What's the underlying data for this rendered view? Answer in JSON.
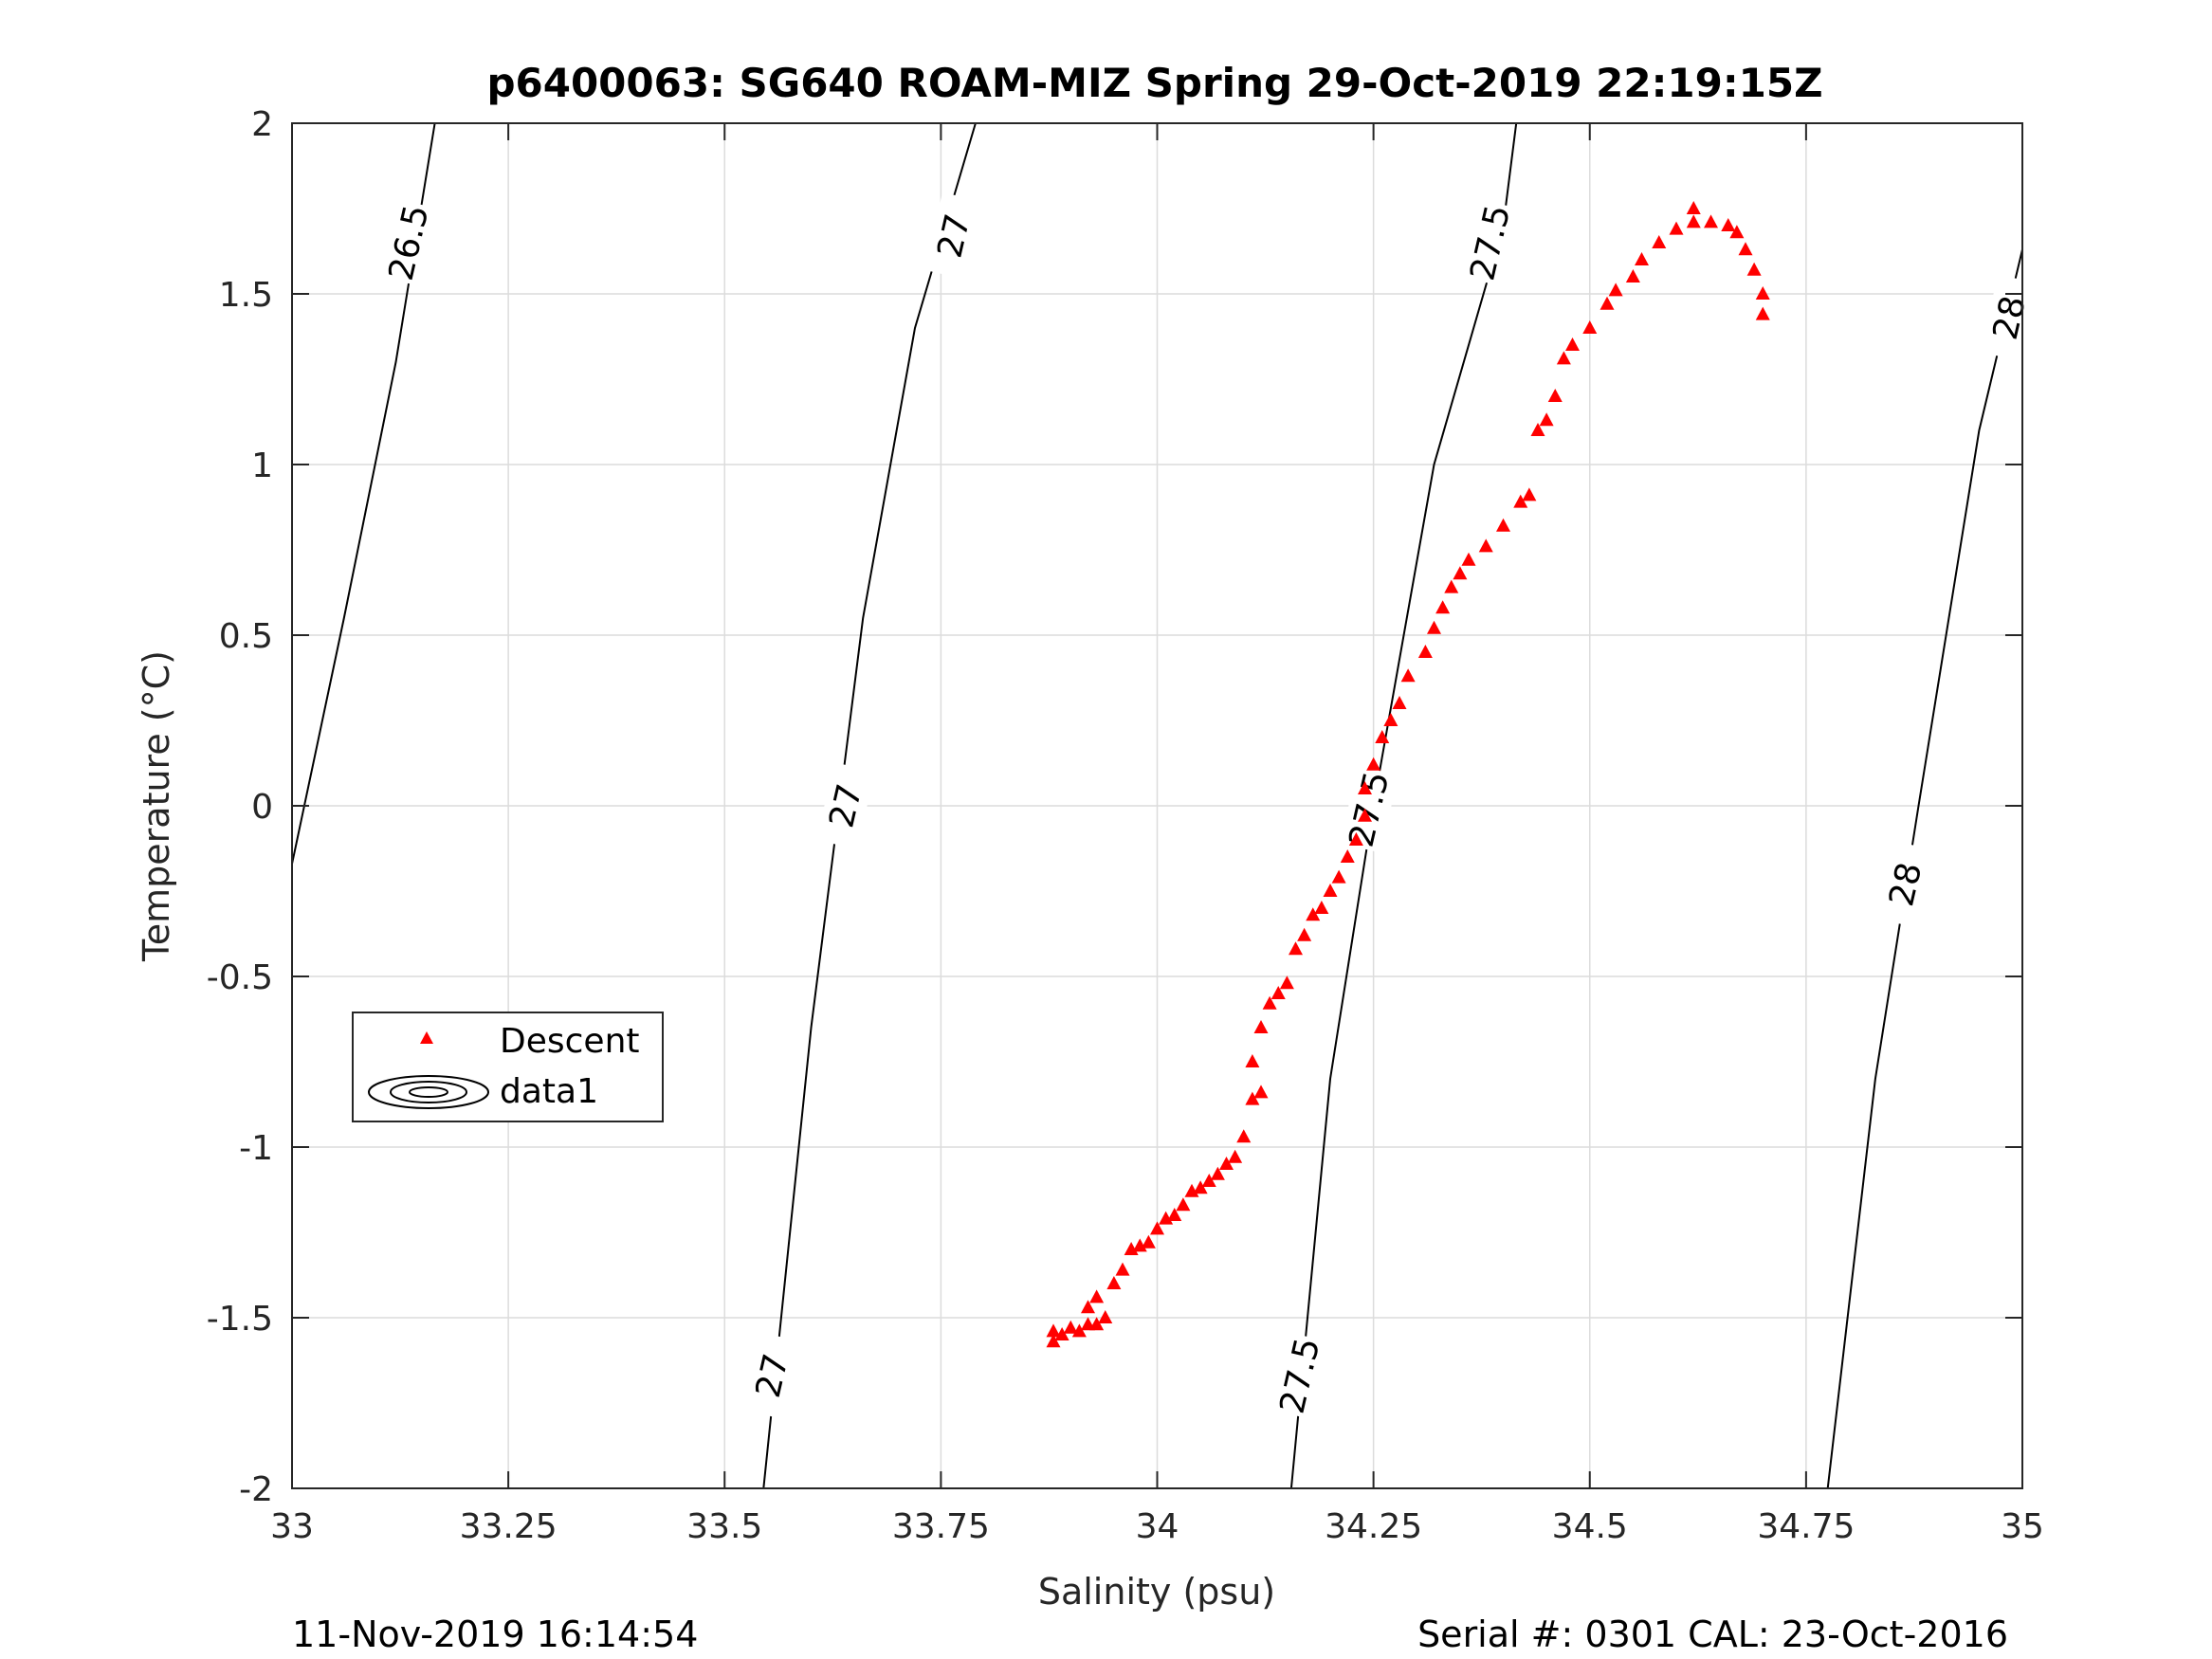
{
  "chart_data": {
    "type": "scatter",
    "title": "p6400063: SG640 ROAM-MIZ Spring 29-Oct-2019 22:19:15Z",
    "xlabel": "Salinity (psu)",
    "ylabel": "Temperature (°C)",
    "xlim": [
      33,
      35
    ],
    "ylim": [
      -2,
      2
    ],
    "xticks": [
      33,
      33.25,
      33.5,
      33.75,
      34,
      34.25,
      34.5,
      34.75,
      35
    ],
    "xtick_labels": [
      "33",
      "33.25",
      "33.5",
      "33.75",
      "34",
      "34.25",
      "34.5",
      "34.75",
      "35"
    ],
    "yticks": [
      -2,
      -1.5,
      -1,
      -0.5,
      0,
      0.5,
      1,
      1.5,
      2
    ],
    "ytick_labels": [
      "-2",
      "-1.5",
      "-1",
      "-0.5",
      "0",
      "0.5",
      "1",
      "1.5",
      "2"
    ],
    "grid": true,
    "legend": {
      "position": "lower-left",
      "entries": [
        "Descent",
        "data1"
      ]
    },
    "series": [
      {
        "name": "Descent",
        "marker": "triangle",
        "color": "#ff0000",
        "points": [
          [
            33.88,
            -1.57
          ],
          [
            33.88,
            -1.54
          ],
          [
            33.89,
            -1.55
          ],
          [
            33.9,
            -1.53
          ],
          [
            33.91,
            -1.54
          ],
          [
            33.92,
            -1.52
          ],
          [
            33.92,
            -1.47
          ],
          [
            33.93,
            -1.52
          ],
          [
            33.93,
            -1.44
          ],
          [
            33.94,
            -1.5
          ],
          [
            33.95,
            -1.4
          ],
          [
            33.96,
            -1.36
          ],
          [
            33.97,
            -1.3
          ],
          [
            33.98,
            -1.29
          ],
          [
            33.99,
            -1.28
          ],
          [
            34.0,
            -1.24
          ],
          [
            34.01,
            -1.21
          ],
          [
            34.02,
            -1.2
          ],
          [
            34.03,
            -1.17
          ],
          [
            34.04,
            -1.13
          ],
          [
            34.05,
            -1.12
          ],
          [
            34.06,
            -1.1
          ],
          [
            34.07,
            -1.08
          ],
          [
            34.08,
            -1.05
          ],
          [
            34.09,
            -1.03
          ],
          [
            34.1,
            -0.97
          ],
          [
            34.11,
            -0.86
          ],
          [
            34.12,
            -0.84
          ],
          [
            34.11,
            -0.75
          ],
          [
            34.12,
            -0.65
          ],
          [
            34.13,
            -0.58
          ],
          [
            34.14,
            -0.55
          ],
          [
            34.15,
            -0.52
          ],
          [
            34.16,
            -0.42
          ],
          [
            34.17,
            -0.38
          ],
          [
            34.18,
            -0.32
          ],
          [
            34.19,
            -0.3
          ],
          [
            34.2,
            -0.25
          ],
          [
            34.21,
            -0.21
          ],
          [
            34.22,
            -0.15
          ],
          [
            34.23,
            -0.1
          ],
          [
            34.24,
            -0.03
          ],
          [
            34.24,
            0.05
          ],
          [
            34.25,
            0.12
          ],
          [
            34.26,
            0.2
          ],
          [
            34.27,
            0.25
          ],
          [
            34.28,
            0.3
          ],
          [
            34.29,
            0.38
          ],
          [
            34.31,
            0.45
          ],
          [
            34.32,
            0.52
          ],
          [
            34.33,
            0.58
          ],
          [
            34.34,
            0.64
          ],
          [
            34.35,
            0.68
          ],
          [
            34.36,
            0.72
          ],
          [
            34.38,
            0.76
          ],
          [
            34.4,
            0.82
          ],
          [
            34.42,
            0.89
          ],
          [
            34.43,
            0.91
          ],
          [
            34.44,
            1.1
          ],
          [
            34.45,
            1.13
          ],
          [
            34.46,
            1.2
          ],
          [
            34.47,
            1.31
          ],
          [
            34.48,
            1.35
          ],
          [
            34.5,
            1.4
          ],
          [
            34.52,
            1.47
          ],
          [
            34.53,
            1.51
          ],
          [
            34.55,
            1.55
          ],
          [
            34.56,
            1.6
          ],
          [
            34.58,
            1.65
          ],
          [
            34.6,
            1.69
          ],
          [
            34.62,
            1.71
          ],
          [
            34.62,
            1.75
          ],
          [
            34.64,
            1.71
          ],
          [
            34.66,
            1.7
          ],
          [
            34.67,
            1.68
          ],
          [
            34.68,
            1.63
          ],
          [
            34.69,
            1.57
          ],
          [
            34.7,
            1.5
          ],
          [
            34.7,
            1.44
          ]
        ]
      },
      {
        "name": "data1",
        "type": "contour",
        "color": "#000000",
        "label_format": "sigma_theta",
        "levels": [
          26.5,
          27,
          27.5,
          28
        ],
        "lines": [
          {
            "level": 26.5,
            "points": [
              [
                33.0,
                -0.17
              ],
              [
                33.06,
                0.55
              ],
              [
                33.12,
                1.3
              ],
              [
                33.165,
                2.0
              ]
            ]
          },
          {
            "level": 27,
            "points": [
              [
                33.545,
                -2.0
              ],
              [
                33.6,
                -0.65
              ],
              [
                33.66,
                0.55
              ],
              [
                33.72,
                1.4
              ],
              [
                33.79,
                2.0
              ]
            ]
          },
          {
            "level": 27.5,
            "points": [
              [
                34.155,
                -2.0
              ],
              [
                34.2,
                -0.8
              ],
              [
                34.25,
                0.0
              ],
              [
                34.32,
                1.0
              ],
              [
                34.4,
                1.7
              ],
              [
                34.415,
                2.0
              ]
            ]
          },
          {
            "level": 28,
            "points": [
              [
                34.775,
                -2.0
              ],
              [
                34.83,
                -0.8
              ],
              [
                34.88,
                0.0
              ],
              [
                34.95,
                1.1
              ],
              [
                35.0,
                1.63
              ]
            ]
          }
        ],
        "labels": [
          {
            "text": "26.5",
            "at": [
              33.135,
              1.65
            ]
          },
          {
            "text": "27",
            "at": [
              33.765,
              1.67
            ]
          },
          {
            "text": "27",
            "at": [
              33.64,
              0.0
            ]
          },
          {
            "text": "27",
            "at": [
              33.555,
              -1.67
            ]
          },
          {
            "text": "27.5",
            "at": [
              34.385,
              1.65
            ]
          },
          {
            "text": "27.5",
            "at": [
              34.245,
              -0.01
            ]
          },
          {
            "text": "27.5",
            "at": [
              34.165,
              -1.67
            ]
          },
          {
            "text": "28",
            "at": [
              34.985,
              1.43
            ]
          },
          {
            "text": "28",
            "at": [
              34.865,
              -0.23
            ]
          }
        ]
      }
    ]
  },
  "footer": {
    "timestamp": "11-Nov-2019 16:14:54",
    "serial": "Serial #: 0301  CAL: 23-Oct-2016"
  }
}
